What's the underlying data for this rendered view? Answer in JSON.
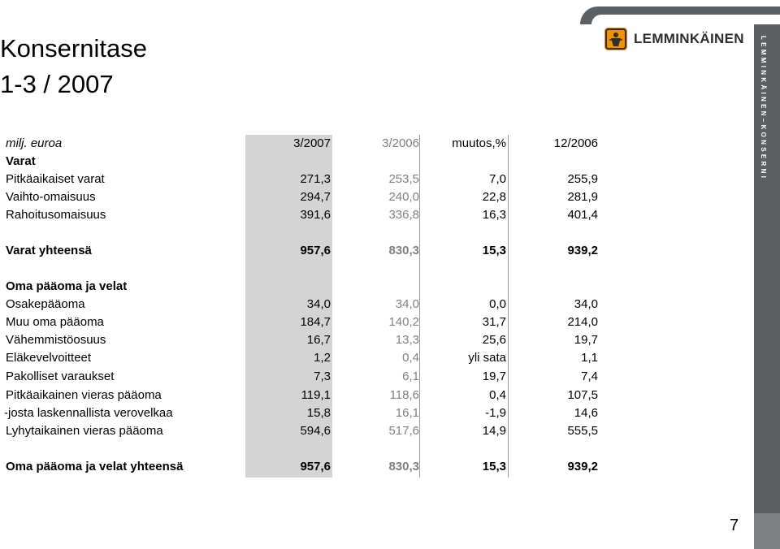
{
  "title": {
    "line1": "Konsernitase",
    "line2": "1-3 / 2007"
  },
  "logo": {
    "text": "LEMMINKÄINEN",
    "vertical_text": "LEMMINKÄINEN–KONSERNI",
    "accent_color": "#f39200"
  },
  "page_number": "7",
  "table": {
    "unit_label": "milj. euroa",
    "columns": [
      "3/2007",
      "3/2006",
      "muutos,%",
      "12/2006"
    ],
    "rows": [
      {
        "label": "Varat",
        "values": [
          "",
          "",
          "",
          ""
        ]
      },
      {
        "label": "Pitkäaikaiset varat",
        "values": [
          "271,3",
          "253,5",
          "7,0",
          "255,9"
        ]
      },
      {
        "label": "Vaihto-omaisuus",
        "values": [
          "294,7",
          "240,0",
          "22,8",
          "281,9"
        ]
      },
      {
        "label": "Rahoitusomaisuus",
        "values": [
          "391,6",
          "336,8",
          "16,3",
          "401,4"
        ]
      },
      {
        "label": "Varat yhteensä",
        "values": [
          "957,6",
          "830,3",
          "15,3",
          "939,2"
        ]
      },
      {
        "label": "Oma pääoma ja velat",
        "values": [
          "",
          "",
          "",
          ""
        ]
      },
      {
        "label": "Osakepääoma",
        "values": [
          "34,0",
          "34,0",
          "0,0",
          "34,0"
        ]
      },
      {
        "label": "Muu oma pääoma",
        "values": [
          "184,7",
          "140,2",
          "31,7",
          "214,0"
        ]
      },
      {
        "label": "Vähemmistöosuus",
        "values": [
          "16,7",
          "13,3",
          "25,6",
          "19,7"
        ]
      },
      {
        "label": "Eläkevelvoitteet",
        "values": [
          "1,2",
          "0,4",
          "yli sata",
          "1,1"
        ]
      },
      {
        "label": "Pakolliset varaukset",
        "values": [
          "7,3",
          "6,1",
          "19,7",
          "7,4"
        ]
      },
      {
        "label": "Pitkäaikainen vieras pääoma",
        "values": [
          "119,1",
          "118,6",
          "0,4",
          "107,5"
        ]
      },
      {
        "label": " -josta laskennallista verovelkaa",
        "values": [
          "15,8",
          "16,1",
          "-1,9",
          "14,6"
        ]
      },
      {
        "label": "Lyhytaikainen vieras pääoma",
        "values": [
          "594,6",
          "517,6",
          "14,9",
          "555,5"
        ]
      },
      {
        "label": "Oma pääoma ja velat yhteensä",
        "values": [
          "957,6",
          "830,3",
          "15,3",
          "939,2"
        ]
      }
    ]
  }
}
